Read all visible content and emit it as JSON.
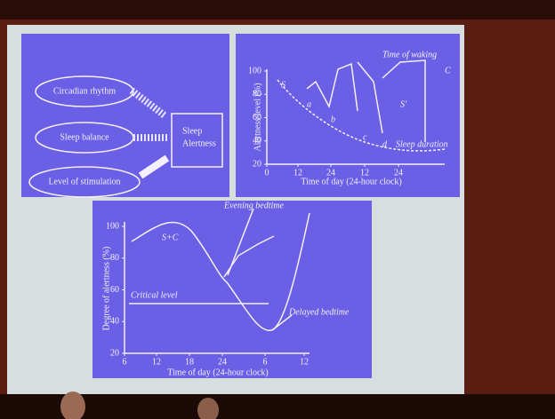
{
  "diagram": {
    "nodes": [
      "Circadian rhythm",
      "Sleep balance",
      "Level of stimulation"
    ],
    "target": [
      "Sleep",
      "Alertness"
    ]
  },
  "top_chart": {
    "title": "Time of waking",
    "y_label": "Alertness level (%)",
    "x_label": "Time of day (24-hour clock)",
    "yticks": [
      "20",
      "40",
      "60",
      "80",
      "100"
    ],
    "xticks": [
      "0",
      "12",
      "24",
      "12",
      "24"
    ],
    "labels": [
      "S",
      "C",
      "S'",
      "a",
      "b",
      "c",
      "d"
    ],
    "annotation": "Sleep duration"
  },
  "bottom_chart": {
    "y_label": "Degree of alertness (%)",
    "x_label": "Time of day (24-hour clock)",
    "yticks": [
      "20",
      "40",
      "60",
      "80",
      "100"
    ],
    "xticks": [
      "6",
      "12",
      "18",
      "24",
      "6",
      "12"
    ],
    "curve_label": "S+C",
    "annotations": [
      "Evening bedtime",
      "Critical level",
      "Delayed bedtime"
    ]
  }
}
